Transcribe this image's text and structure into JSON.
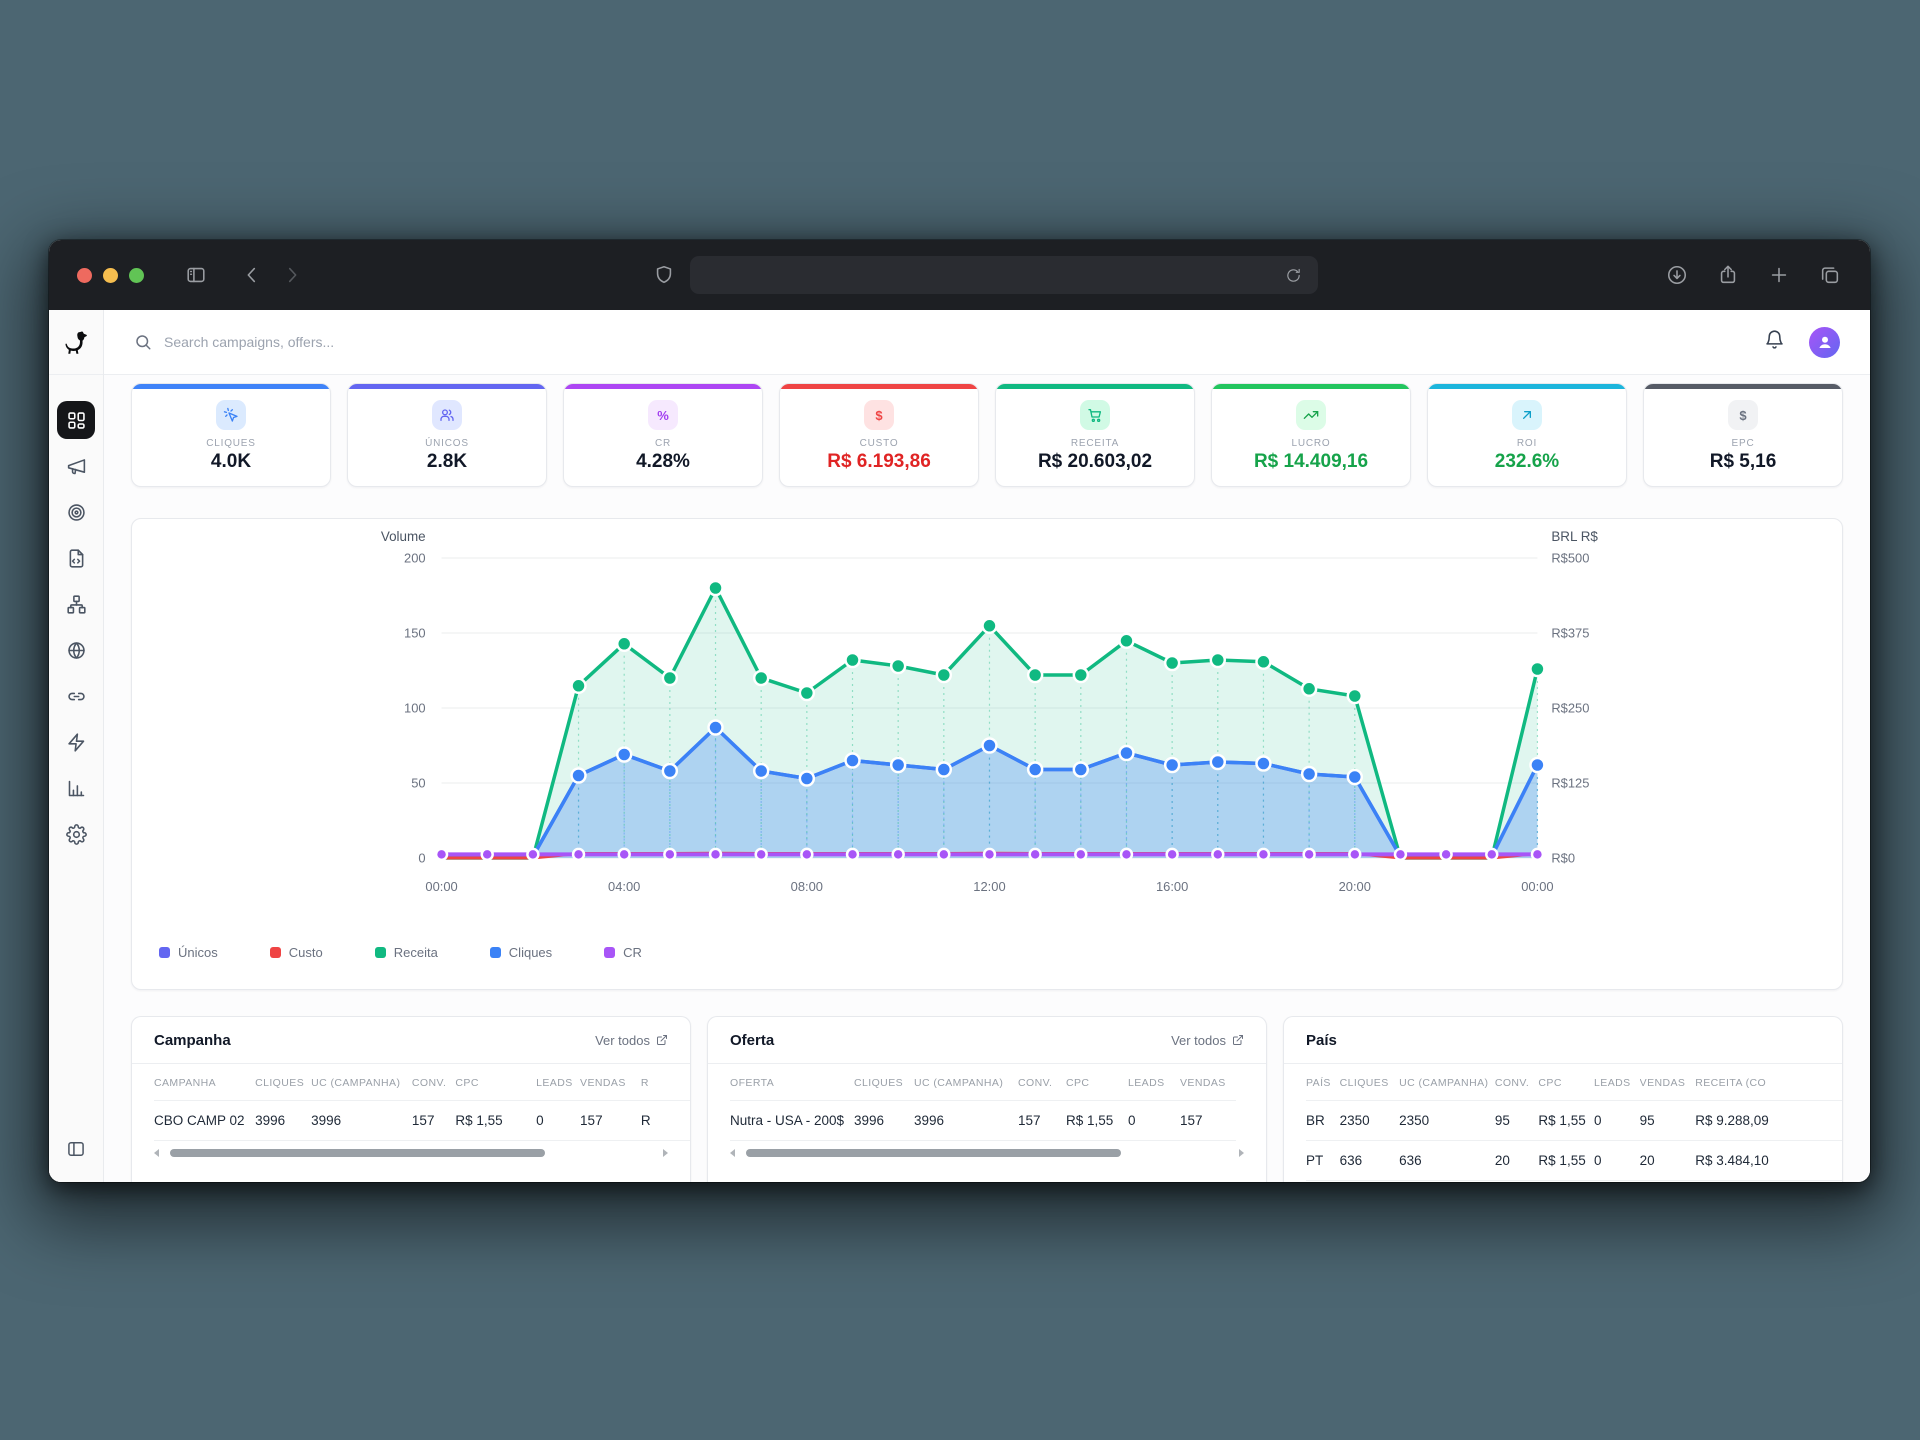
{
  "window": {
    "traffic_lights": [
      "close",
      "minimize",
      "zoom"
    ],
    "url_value": "",
    "toolbar_icons": [
      "sidebar-toggle",
      "back",
      "forward",
      "shield",
      "reload",
      "download",
      "share",
      "new-tab",
      "tab-overview"
    ]
  },
  "topbar": {
    "search_placeholder": "Search campaigns, offers...",
    "icons": [
      "bell",
      "avatar"
    ]
  },
  "sidebar": {
    "logo": "dog-logo",
    "items": [
      {
        "name": "dashboard",
        "icon": "layout-grid",
        "active": true
      },
      {
        "name": "campaigns",
        "icon": "megaphone",
        "active": false
      },
      {
        "name": "offers",
        "icon": "target",
        "active": false
      },
      {
        "name": "landers",
        "icon": "file-code",
        "active": false
      },
      {
        "name": "flows",
        "icon": "sitemap",
        "active": false
      },
      {
        "name": "domains",
        "icon": "globe",
        "active": false
      },
      {
        "name": "links",
        "icon": "link",
        "active": false
      },
      {
        "name": "automation",
        "icon": "zap",
        "active": false
      },
      {
        "name": "reports",
        "icon": "bar-chart",
        "active": false
      },
      {
        "name": "settings",
        "icon": "gear",
        "active": false
      }
    ],
    "bottom_icon": "panel-collapse"
  },
  "stats": [
    {
      "label": "CLIQUES",
      "value": "4.0K",
      "accent": "#3f83f8",
      "chip_bg": "#dbeafe",
      "icon": "cursor-click",
      "icon_color": "#3b82f6",
      "value_color": "#111827"
    },
    {
      "label": "ÚNICOS",
      "value": "2.8K",
      "accent": "#6366f1",
      "chip_bg": "#e0e7ff",
      "icon": "users",
      "icon_color": "#6366f1",
      "value_color": "#111827"
    },
    {
      "label": "CR",
      "value": "4.28%",
      "accent": "#ad46f3",
      "chip_bg": "#f6e9fe",
      "icon": "percent",
      "icon_color": "#a23df0",
      "value_color": "#111827"
    },
    {
      "label": "CUSTO",
      "value": "R$ 6.193,86",
      "accent": "#ef4444",
      "chip_bg": "#fee2e2",
      "icon": "dollar",
      "icon_color": "#ef4444",
      "value_color": "#e02424"
    },
    {
      "label": "RECEITA",
      "value": "R$ 20.603,02",
      "accent": "#10b981",
      "chip_bg": "#d1fae5",
      "icon": "cart",
      "icon_color": "#10b981",
      "value_color": "#111827"
    },
    {
      "label": "LUCRO",
      "value": "R$ 14.409,16",
      "accent": "#22c55e",
      "chip_bg": "#dcfce7",
      "icon": "trend-up",
      "icon_color": "#16a34a",
      "value_color": "#16a34a"
    },
    {
      "label": "ROI",
      "value": "232.6%",
      "accent": "#1cb5dc",
      "chip_bg": "#d9f4fc",
      "icon": "arrow-up-right",
      "icon_color": "#0c9fc9",
      "value_color": "#16a34a"
    },
    {
      "label": "EPC",
      "value": "R$ 5,16",
      "accent": "#565b66",
      "chip_bg": "#f1f2f4",
      "icon": "dollar",
      "icon_color": "#6b7280",
      "value_color": "#111827"
    }
  ],
  "chart_data": {
    "type": "area-line",
    "x": [
      "00:00",
      "01:00",
      "02:00",
      "03:00",
      "04:00",
      "05:00",
      "06:00",
      "07:00",
      "08:00",
      "09:00",
      "10:00",
      "11:00",
      "12:00",
      "13:00",
      "14:00",
      "15:00",
      "16:00",
      "17:00",
      "18:00",
      "19:00",
      "20:00",
      "21:00",
      "22:00",
      "23:00",
      "00:00"
    ],
    "x_major_ticks": [
      0,
      4,
      8,
      12,
      16,
      20,
      24
    ],
    "left_axis": {
      "title": "Volume",
      "min": 0,
      "max": 200,
      "ticks": [
        0,
        50,
        100,
        150,
        200
      ]
    },
    "right_axis": {
      "title": "BRL R$",
      "min": 0,
      "max": 500,
      "ticks": [
        0,
        125,
        250,
        375,
        500
      ],
      "tick_labels": [
        "R$0",
        "R$125",
        "R$250",
        "R$375",
        "R$500"
      ]
    },
    "series": [
      {
        "name": "Receita",
        "axis": "right",
        "color": "#10b981",
        "fill": "rgba(16,185,129,0.13)",
        "dots": true,
        "dot_min": 20,
        "droplines": true,
        "values": [
          0,
          0,
          0,
          287,
          357,
          300,
          450,
          300,
          275,
          330,
          320,
          305,
          387,
          305,
          305,
          362,
          325,
          330,
          327,
          282,
          270,
          0,
          0,
          0,
          315
        ]
      },
      {
        "name": "Únicos",
        "axis": "left",
        "color": "#6366f1",
        "fill": null,
        "dots": false,
        "dot_min": 0,
        "droplines": false,
        "values": [
          2,
          2,
          1,
          55,
          69,
          58,
          87,
          58,
          53,
          65,
          62,
          59,
          75,
          59,
          59,
          70,
          62,
          64,
          63,
          56,
          54,
          1,
          1,
          1,
          62
        ]
      },
      {
        "name": "Cliques",
        "axis": "left",
        "color": "#3b82f6",
        "fill": "rgba(59,130,246,0.30)",
        "dots": true,
        "dot_min": 4,
        "droplines": true,
        "values": [
          2,
          2,
          1,
          55,
          69,
          58,
          87,
          58,
          53,
          65,
          62,
          59,
          75,
          59,
          59,
          70,
          62,
          64,
          63,
          56,
          54,
          1,
          1,
          1,
          62
        ]
      },
      {
        "name": "Custo",
        "axis": "right",
        "color": "#ef4444",
        "fill": null,
        "dots": false,
        "dot_min": 0,
        "droplines": false,
        "values": [
          0,
          0,
          0,
          7.5,
          7.5,
          7.5,
          8,
          7.5,
          7.5,
          7.5,
          7.5,
          7.5,
          8,
          7.5,
          7.5,
          7.5,
          7.5,
          7.5,
          7.5,
          7.5,
          7.5,
          0,
          0,
          0,
          7.5
        ]
      },
      {
        "name": "CR",
        "axis": "left",
        "color": "#a855f7",
        "fill": null,
        "dots": true,
        "dot_min": 0,
        "droplines": false,
        "values": [
          2.4,
          2.4,
          2.4,
          2.4,
          2.4,
          2.4,
          2.4,
          2.4,
          2.4,
          2.4,
          2.4,
          2.4,
          2.4,
          2.4,
          2.4,
          2.4,
          2.4,
          2.4,
          2.4,
          2.4,
          2.4,
          2.4,
          2.4,
          2.4,
          2.4
        ]
      }
    ],
    "legend": [
      {
        "label": "Únicos",
        "color": "#6366f1"
      },
      {
        "label": "Custo",
        "color": "#ef4444"
      },
      {
        "label": "Receita",
        "color": "#10b981"
      },
      {
        "label": "Cliques",
        "color": "#3b82f6"
      },
      {
        "label": "CR",
        "color": "#a855f7"
      }
    ]
  },
  "tables": [
    {
      "title": "Campanha",
      "link": "Ver todos",
      "scrollbar": true,
      "columns": [
        "CAMPANHA",
        "CLIQUES",
        "UC (CAMPANHA)",
        "CONV.",
        "CPC",
        "LEADS",
        "VENDAS",
        "R"
      ],
      "rows": [
        [
          "CBO CAMP 02",
          "3996",
          "3996",
          "157",
          "R$ 1,55",
          "0",
          "157",
          "R"
        ]
      ]
    },
    {
      "title": "Oferta",
      "link": "Ver todos",
      "scrollbar": true,
      "columns": [
        "OFERTA",
        "CLIQUES",
        "UC (CAMPANHA)",
        "CONV.",
        "CPC",
        "LEADS",
        "VENDAS"
      ],
      "rows": [
        [
          "Nutra - USA - 200$",
          "3996",
          "3996",
          "157",
          "R$ 1,55",
          "0",
          "157"
        ]
      ]
    },
    {
      "title": "País",
      "link": null,
      "scrollbar": false,
      "columns": [
        "PAÍS",
        "CLIQUES",
        "UC (CAMPANHA)",
        "CONV.",
        "CPC",
        "LEADS",
        "VENDAS",
        "RECEITA (CO"
      ],
      "rows": [
        [
          "BR",
          "2350",
          "2350",
          "95",
          "R$ 1,55",
          "0",
          "95",
          "R$ 9.288,09"
        ],
        [
          "PT",
          "636",
          "636",
          "20",
          "R$ 1,55",
          "0",
          "20",
          "R$ 3.484,10"
        ]
      ]
    }
  ]
}
